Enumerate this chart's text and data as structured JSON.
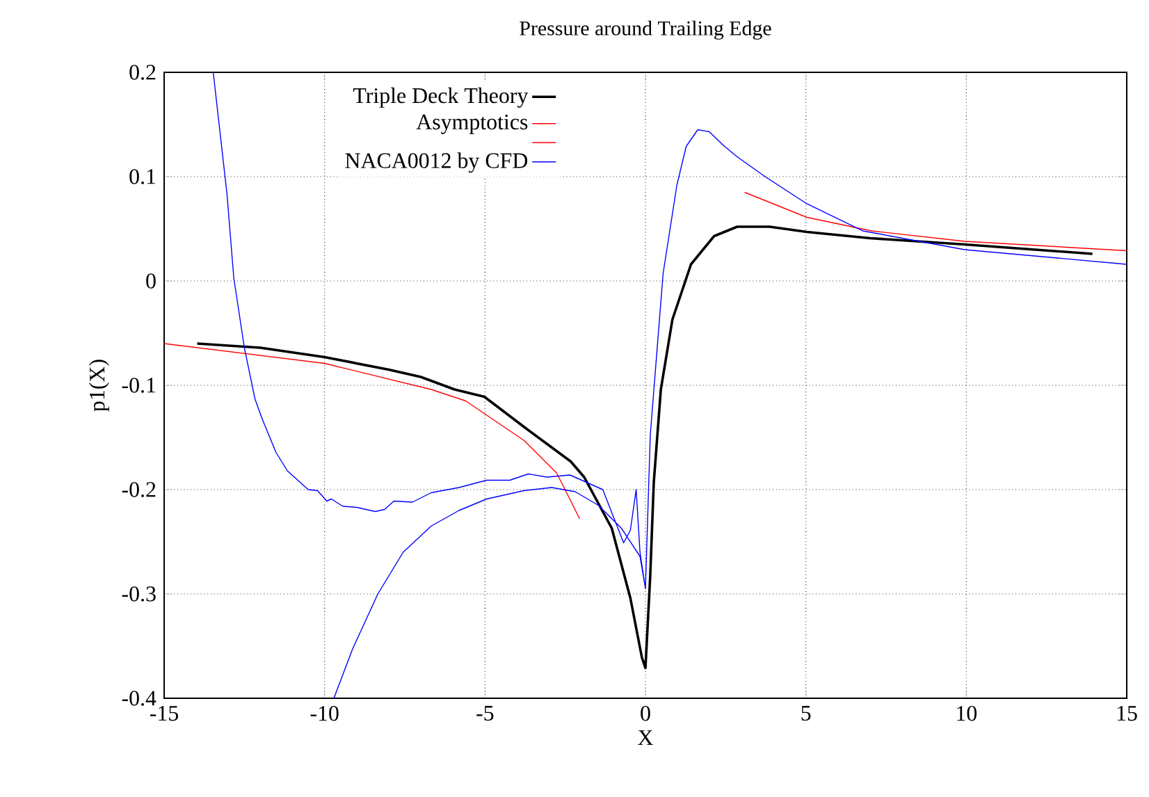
{
  "chart_data": {
    "type": "line",
    "title": "Pressure around Trailing Edge",
    "xlabel": "X",
    "ylabel": "p1(X)",
    "xlim": [
      -15,
      15
    ],
    "ylim": [
      -0.4,
      0.2
    ],
    "xticks": [
      -15,
      -10,
      -5,
      0,
      5,
      10,
      15
    ],
    "yticks": [
      -0.4,
      -0.3,
      -0.2,
      -0.1,
      0,
      0.1,
      0.2
    ],
    "grid": true,
    "legend": "top left",
    "marker": "none",
    "line_style": "solid",
    "series": [
      {
        "name": "Triple Deck Theory",
        "color": "#000000",
        "x": [
          -13.97,
          -12,
          -10,
          -8,
          -7,
          -5.95,
          -5.02,
          -3.78,
          -2.33,
          -1.91,
          -1.05,
          -0.47,
          -0.11,
          0,
          0.15,
          0.26,
          0.48,
          0.84,
          1.42,
          2.14,
          2.86,
          3.87,
          5.03,
          7,
          9.95,
          13.93
        ],
        "values": [
          -0.06,
          -0.064,
          -0.073,
          -0.085,
          -0.092,
          -0.104,
          -0.111,
          -0.14,
          -0.173,
          -0.188,
          -0.237,
          -0.304,
          -0.361,
          -0.371,
          -0.282,
          -0.193,
          -0.104,
          -0.037,
          0.016,
          0.043,
          0.052,
          0.052,
          0.047,
          0.041,
          0.035,
          0.026
        ]
      },
      {
        "name": "Asymptotics",
        "color": "#ff0000",
        "x": [
          -15,
          -10,
          -6.68,
          -5.6,
          -3.78,
          -2.77,
          -2.62,
          -2.05
        ],
        "values": [
          -0.06,
          -0.079,
          -0.104,
          -0.115,
          -0.153,
          -0.184,
          -0.193,
          -0.228
        ]
      },
      {
        "color": "#ff0000",
        "x": [
          3.09,
          5.03,
          7.05,
          9.95,
          15
        ],
        "values": [
          0.085,
          0.061,
          0.048,
          0.038,
          0.029
        ]
      },
      {
        "name": "NACA0012 by CFD",
        "color": "#0000ff",
        "x": [
          -13.47,
          -13.04,
          -12.83,
          -12.5,
          -12.17,
          -11.96,
          -11.52,
          -11.16,
          -10.51,
          -10.22,
          -9.93,
          -9.79,
          -9.43,
          -9,
          -8.42,
          -8.13,
          -7.84,
          -7.26,
          -6.68,
          -5.81,
          -4.95,
          -4.23,
          -3.65,
          -3.07,
          -2.35,
          -1.91,
          -1.33,
          -0.68,
          -0.47,
          -0.29,
          -0.17,
          0,
          0.15,
          0.55,
          0.98,
          1.27,
          1.63,
          1.99,
          2.43,
          2.86,
          3.73,
          5.03,
          6.77,
          9.95,
          14.98,
          null,
          -9.71,
          -9.13,
          -8.34,
          -7.55,
          -6.68,
          -5.81,
          -4.95,
          -3.79,
          -2.92,
          -2.19,
          -1.47,
          -0.75,
          -0.17,
          0
        ],
        "values": [
          0.2,
          0.083,
          0.003,
          -0.064,
          -0.113,
          -0.131,
          -0.164,
          -0.182,
          -0.2,
          -0.201,
          -0.211,
          -0.209,
          -0.216,
          -0.217,
          -0.221,
          -0.219,
          -0.211,
          -0.212,
          -0.203,
          -0.198,
          -0.191,
          -0.191,
          -0.185,
          -0.188,
          -0.186,
          -0.192,
          -0.2,
          -0.251,
          -0.239,
          -0.2,
          -0.26,
          -0.295,
          -0.148,
          0.007,
          0.092,
          0.129,
          0.145,
          0.143,
          0.13,
          0.119,
          0.1,
          0.074,
          0.048,
          0.03,
          0.016,
          null,
          -0.4,
          -0.353,
          -0.3,
          -0.26,
          -0.235,
          -0.22,
          -0.209,
          -0.201,
          -0.198,
          -0.202,
          -0.215,
          -0.237,
          -0.264,
          -0.295
        ]
      }
    ]
  }
}
